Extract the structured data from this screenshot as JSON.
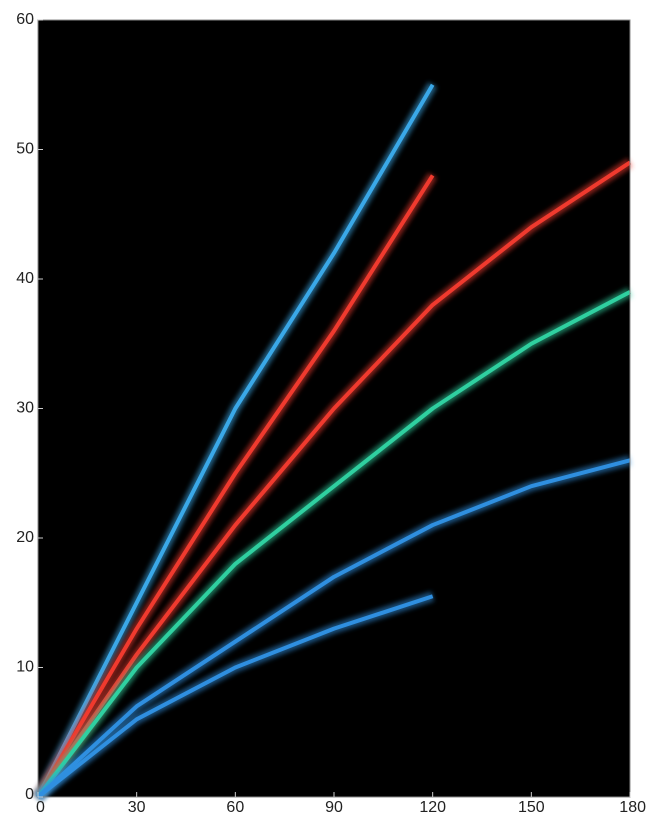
{
  "chart_data": {
    "type": "line",
    "x": [
      0,
      30,
      60,
      90,
      120,
      150,
      180
    ],
    "series": [
      {
        "color": "#3aa8e8",
        "values": [
          0,
          15,
          30,
          42,
          55,
          null,
          null
        ]
      },
      {
        "color": "#f03a2e",
        "values": [
          0,
          13,
          25,
          36,
          48,
          null,
          null
        ]
      },
      {
        "color": "#f03a2e",
        "values": [
          0,
          11,
          21,
          30,
          38,
          44,
          49
        ]
      },
      {
        "color": "#2fd0a0",
        "values": [
          0,
          10,
          18,
          24,
          30,
          35,
          39
        ]
      },
      {
        "color": "#2f8fe0",
        "values": [
          0,
          7,
          12,
          17,
          21,
          24,
          26
        ]
      },
      {
        "color": "#2f8fe0",
        "values": [
          0,
          6,
          10,
          13,
          15.5,
          null,
          null
        ]
      }
    ],
    "xlim": [
      0,
      180
    ],
    "ylim": [
      0,
      60
    ],
    "xticks": [
      0,
      30,
      60,
      90,
      120,
      150,
      180
    ],
    "yticks": [
      0,
      10,
      20,
      30,
      40,
      50,
      60
    ],
    "background": "#000000"
  }
}
